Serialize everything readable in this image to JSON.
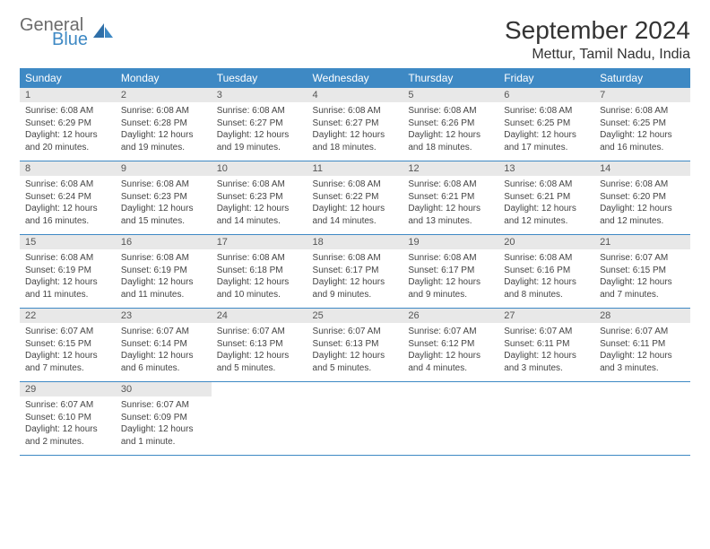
{
  "brand": {
    "line1": "General",
    "line2": "Blue"
  },
  "title": "September 2024",
  "location": "Mettur, Tamil Nadu, India",
  "colors": {
    "header_bg": "#3e89c4",
    "header_fg": "#ffffff",
    "daynum_bg": "#e8e8e8",
    "rule": "#3e89c4",
    "logo_gray": "#6b6b6b",
    "logo_blue": "#3e89c4"
  },
  "day_headers": [
    "Sunday",
    "Monday",
    "Tuesday",
    "Wednesday",
    "Thursday",
    "Friday",
    "Saturday"
  ],
  "weeks": [
    [
      {
        "n": "1",
        "sunrise": "Sunrise: 6:08 AM",
        "sunset": "Sunset: 6:29 PM",
        "day1": "Daylight: 12 hours",
        "day2": "and 20 minutes."
      },
      {
        "n": "2",
        "sunrise": "Sunrise: 6:08 AM",
        "sunset": "Sunset: 6:28 PM",
        "day1": "Daylight: 12 hours",
        "day2": "and 19 minutes."
      },
      {
        "n": "3",
        "sunrise": "Sunrise: 6:08 AM",
        "sunset": "Sunset: 6:27 PM",
        "day1": "Daylight: 12 hours",
        "day2": "and 19 minutes."
      },
      {
        "n": "4",
        "sunrise": "Sunrise: 6:08 AM",
        "sunset": "Sunset: 6:27 PM",
        "day1": "Daylight: 12 hours",
        "day2": "and 18 minutes."
      },
      {
        "n": "5",
        "sunrise": "Sunrise: 6:08 AM",
        "sunset": "Sunset: 6:26 PM",
        "day1": "Daylight: 12 hours",
        "day2": "and 18 minutes."
      },
      {
        "n": "6",
        "sunrise": "Sunrise: 6:08 AM",
        "sunset": "Sunset: 6:25 PM",
        "day1": "Daylight: 12 hours",
        "day2": "and 17 minutes."
      },
      {
        "n": "7",
        "sunrise": "Sunrise: 6:08 AM",
        "sunset": "Sunset: 6:25 PM",
        "day1": "Daylight: 12 hours",
        "day2": "and 16 minutes."
      }
    ],
    [
      {
        "n": "8",
        "sunrise": "Sunrise: 6:08 AM",
        "sunset": "Sunset: 6:24 PM",
        "day1": "Daylight: 12 hours",
        "day2": "and 16 minutes."
      },
      {
        "n": "9",
        "sunrise": "Sunrise: 6:08 AM",
        "sunset": "Sunset: 6:23 PM",
        "day1": "Daylight: 12 hours",
        "day2": "and 15 minutes."
      },
      {
        "n": "10",
        "sunrise": "Sunrise: 6:08 AM",
        "sunset": "Sunset: 6:23 PM",
        "day1": "Daylight: 12 hours",
        "day2": "and 14 minutes."
      },
      {
        "n": "11",
        "sunrise": "Sunrise: 6:08 AM",
        "sunset": "Sunset: 6:22 PM",
        "day1": "Daylight: 12 hours",
        "day2": "and 14 minutes."
      },
      {
        "n": "12",
        "sunrise": "Sunrise: 6:08 AM",
        "sunset": "Sunset: 6:21 PM",
        "day1": "Daylight: 12 hours",
        "day2": "and 13 minutes."
      },
      {
        "n": "13",
        "sunrise": "Sunrise: 6:08 AM",
        "sunset": "Sunset: 6:21 PM",
        "day1": "Daylight: 12 hours",
        "day2": "and 12 minutes."
      },
      {
        "n": "14",
        "sunrise": "Sunrise: 6:08 AM",
        "sunset": "Sunset: 6:20 PM",
        "day1": "Daylight: 12 hours",
        "day2": "and 12 minutes."
      }
    ],
    [
      {
        "n": "15",
        "sunrise": "Sunrise: 6:08 AM",
        "sunset": "Sunset: 6:19 PM",
        "day1": "Daylight: 12 hours",
        "day2": "and 11 minutes."
      },
      {
        "n": "16",
        "sunrise": "Sunrise: 6:08 AM",
        "sunset": "Sunset: 6:19 PM",
        "day1": "Daylight: 12 hours",
        "day2": "and 11 minutes."
      },
      {
        "n": "17",
        "sunrise": "Sunrise: 6:08 AM",
        "sunset": "Sunset: 6:18 PM",
        "day1": "Daylight: 12 hours",
        "day2": "and 10 minutes."
      },
      {
        "n": "18",
        "sunrise": "Sunrise: 6:08 AM",
        "sunset": "Sunset: 6:17 PM",
        "day1": "Daylight: 12 hours",
        "day2": "and 9 minutes."
      },
      {
        "n": "19",
        "sunrise": "Sunrise: 6:08 AM",
        "sunset": "Sunset: 6:17 PM",
        "day1": "Daylight: 12 hours",
        "day2": "and 9 minutes."
      },
      {
        "n": "20",
        "sunrise": "Sunrise: 6:08 AM",
        "sunset": "Sunset: 6:16 PM",
        "day1": "Daylight: 12 hours",
        "day2": "and 8 minutes."
      },
      {
        "n": "21",
        "sunrise": "Sunrise: 6:07 AM",
        "sunset": "Sunset: 6:15 PM",
        "day1": "Daylight: 12 hours",
        "day2": "and 7 minutes."
      }
    ],
    [
      {
        "n": "22",
        "sunrise": "Sunrise: 6:07 AM",
        "sunset": "Sunset: 6:15 PM",
        "day1": "Daylight: 12 hours",
        "day2": "and 7 minutes."
      },
      {
        "n": "23",
        "sunrise": "Sunrise: 6:07 AM",
        "sunset": "Sunset: 6:14 PM",
        "day1": "Daylight: 12 hours",
        "day2": "and 6 minutes."
      },
      {
        "n": "24",
        "sunrise": "Sunrise: 6:07 AM",
        "sunset": "Sunset: 6:13 PM",
        "day1": "Daylight: 12 hours",
        "day2": "and 5 minutes."
      },
      {
        "n": "25",
        "sunrise": "Sunrise: 6:07 AM",
        "sunset": "Sunset: 6:13 PM",
        "day1": "Daylight: 12 hours",
        "day2": "and 5 minutes."
      },
      {
        "n": "26",
        "sunrise": "Sunrise: 6:07 AM",
        "sunset": "Sunset: 6:12 PM",
        "day1": "Daylight: 12 hours",
        "day2": "and 4 minutes."
      },
      {
        "n": "27",
        "sunrise": "Sunrise: 6:07 AM",
        "sunset": "Sunset: 6:11 PM",
        "day1": "Daylight: 12 hours",
        "day2": "and 3 minutes."
      },
      {
        "n": "28",
        "sunrise": "Sunrise: 6:07 AM",
        "sunset": "Sunset: 6:11 PM",
        "day1": "Daylight: 12 hours",
        "day2": "and 3 minutes."
      }
    ],
    [
      {
        "n": "29",
        "sunrise": "Sunrise: 6:07 AM",
        "sunset": "Sunset: 6:10 PM",
        "day1": "Daylight: 12 hours",
        "day2": "and 2 minutes."
      },
      {
        "n": "30",
        "sunrise": "Sunrise: 6:07 AM",
        "sunset": "Sunset: 6:09 PM",
        "day1": "Daylight: 12 hours",
        "day2": "and 1 minute."
      },
      {
        "empty": true
      },
      {
        "empty": true
      },
      {
        "empty": true
      },
      {
        "empty": true
      },
      {
        "empty": true
      }
    ]
  ]
}
